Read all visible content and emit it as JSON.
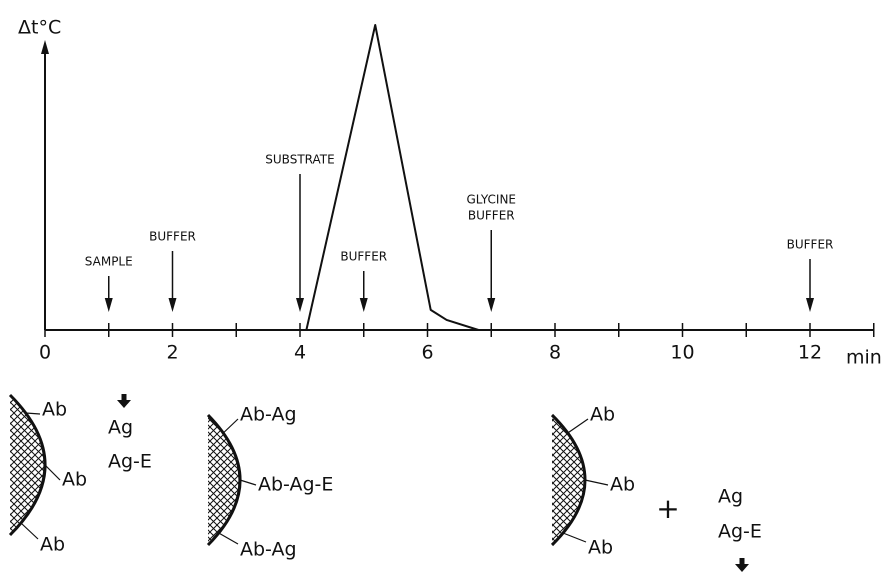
{
  "chart_data": {
    "type": "line",
    "y_label": "Δt°C",
    "x_label": "min",
    "x": [
      0,
      4.1,
      5.18,
      6.05,
      6.3,
      6.8,
      13
    ],
    "values": [
      0,
      0,
      1,
      0.066,
      0.033,
      0,
      0
    ],
    "color": "#111111",
    "xlim": [
      0,
      13
    ],
    "ylim": [
      0,
      1
    ],
    "xticks": [
      0,
      2,
      4,
      6,
      8,
      10,
      12
    ],
    "xminor_ticks": [
      1,
      3,
      5,
      7,
      9,
      11,
      13
    ],
    "annotations": [
      {
        "text": "SAMPLE",
        "x": 1
      },
      {
        "text": "BUFFER",
        "x": 2
      },
      {
        "text": "SUBSTRATE",
        "x": 4
      },
      {
        "text": "BUFFER",
        "x": 5
      },
      {
        "text": [
          "GLYCINE",
          "BUFFER"
        ],
        "x": 7
      },
      {
        "text": "BUFFER",
        "x": 12
      }
    ]
  },
  "diagrams": [
    {
      "surface": [
        "Ab",
        "Ab",
        "Ab"
      ],
      "free": [
        "Ag",
        "Ag-E"
      ]
    },
    {
      "surface": [
        "Ab-Ag",
        "Ab-Ag-E",
        "Ab-Ag"
      ]
    },
    {
      "surface": [
        "Ab",
        "Ab",
        "Ab"
      ],
      "operator": "+",
      "free": [
        "Ag",
        "Ag-E"
      ]
    }
  ]
}
